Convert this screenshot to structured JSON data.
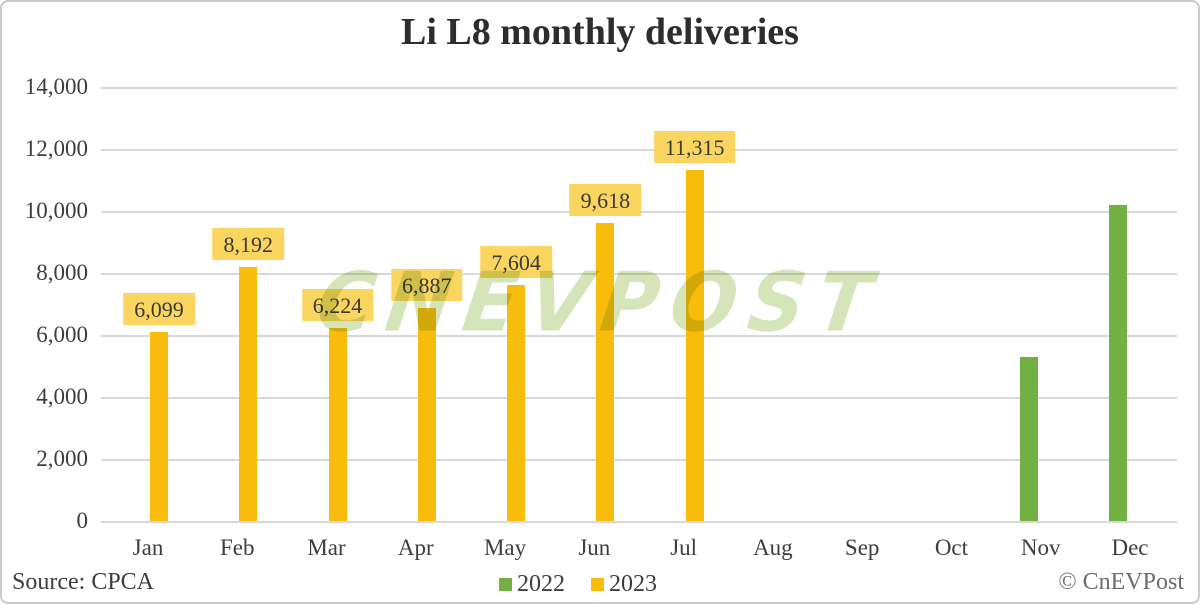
{
  "title": "Li L8 monthly deliveries",
  "watermark": "CNEVPOST",
  "footer": {
    "source": "Source: CPCA",
    "copyright": "© CnEVPost"
  },
  "legend": [
    {
      "label": "2022",
      "color": "#72B043"
    },
    {
      "label": "2023",
      "color": "#F8BC0C"
    }
  ],
  "colors": {
    "bar_2022": "#72B043",
    "bar_2023": "#F8BC0C",
    "label_box": "#FAD661",
    "gridline": "#d9d9d9",
    "axis_text": "#3d3d3d",
    "watermark": "#d6e5b9",
    "frame_border": "#cbcbcb"
  },
  "chart_data": {
    "type": "bar",
    "title": "Li L8 monthly deliveries",
    "categories": [
      "Jan",
      "Feb",
      "Mar",
      "Apr",
      "May",
      "Jun",
      "Jul",
      "Aug",
      "Sep",
      "Oct",
      "Nov",
      "Dec"
    ],
    "series": [
      {
        "name": "2022",
        "color": "#72B043",
        "values": [
          null,
          null,
          null,
          null,
          null,
          null,
          null,
          null,
          null,
          null,
          5300,
          10200
        ],
        "labels": [
          null,
          null,
          null,
          null,
          null,
          null,
          null,
          null,
          null,
          null,
          null,
          null
        ]
      },
      {
        "name": "2023",
        "color": "#F8BC0C",
        "values": [
          6099,
          8192,
          6224,
          6887,
          7604,
          9618,
          11315,
          null,
          null,
          null,
          null,
          null
        ],
        "labels": [
          "6,099",
          "8,192",
          "6,224",
          "6,887",
          "7,604",
          "9,618",
          "11,315",
          null,
          null,
          null,
          null,
          null
        ]
      }
    ],
    "ylim": [
      0,
      14000
    ],
    "ytick_step": 2000,
    "ytick_labels": [
      "0",
      "2,000",
      "4,000",
      "6,000",
      "8,000",
      "10,000",
      "12,000",
      "14,000"
    ],
    "grid": true,
    "legend_position": "bottom-center",
    "xlabel": "",
    "ylabel": ""
  }
}
